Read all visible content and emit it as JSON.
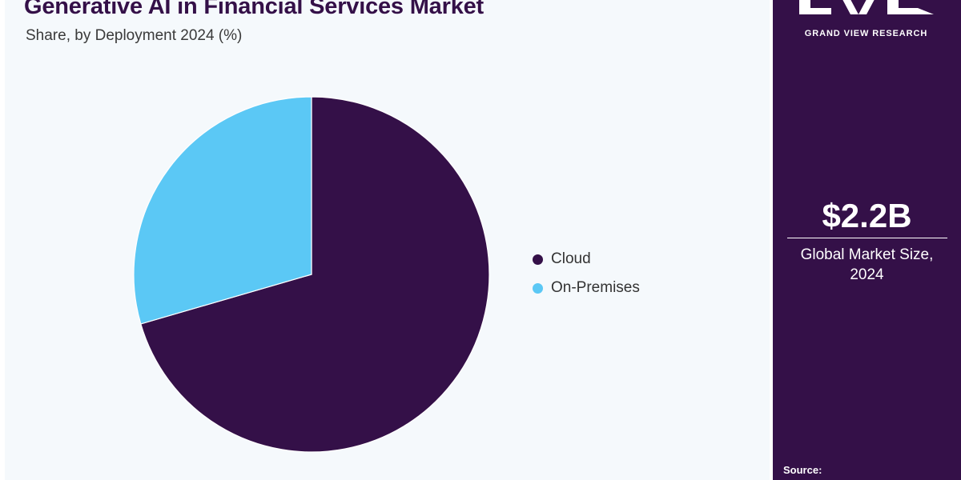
{
  "chart_data": {
    "type": "pie",
    "title": "Generative AI in Financial Services Market",
    "subtitle": "Share, by Deployment 2024 (%)",
    "categories": [
      "Cloud",
      "On-Premises"
    ],
    "values": [
      70.5,
      29.5
    ],
    "colors": [
      "#341048",
      "#5bc8f5"
    ],
    "legend_position": "right"
  },
  "colors": {
    "brand": "#341048",
    "accent": "#5bc8f5",
    "panel_background": "#f5f9fc"
  },
  "sidebar": {
    "logo_icon": "gvr-logo-icon",
    "brand_name": "GRAND VIEW RESEARCH",
    "market_value": "$2.2B",
    "market_caption_line1": "Global Market Size,",
    "market_caption_line2": "2024",
    "source_label": "Source:"
  }
}
